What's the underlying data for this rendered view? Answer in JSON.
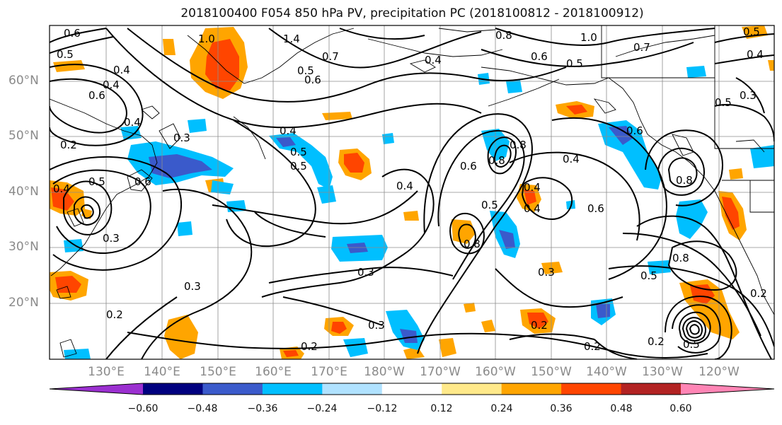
{
  "title": "2018100400 F054 850 hPa PV, precipitation PC (2018100812 - 2018100912)",
  "lat_labels": [
    "60°N",
    "50°N",
    "40°N",
    "30°N",
    "20°N"
  ],
  "lon_labels": [
    "130°E",
    "140°E",
    "150°E",
    "160°E",
    "170°E",
    "180°W",
    "170°W",
    "160°W",
    "150°W",
    "140°W",
    "130°W",
    "120°W"
  ],
  "colorbar": {
    "labels": [
      "−0.60",
      "−0.48",
      "−0.36",
      "−0.24",
      "−0.12",
      "0.12",
      "0.24",
      "0.36",
      "0.48",
      "0.60"
    ],
    "colors": [
      "#9b30d0",
      "#00007f",
      "#3a5acb",
      "#00bfff",
      "#b0e2ff",
      "#ffffff",
      "#ffe98a",
      "#ffa500",
      "#ff4500",
      "#b22222",
      "#ff85b5"
    ]
  },
  "contour_labels": [
    "0.6",
    "0.5",
    "0.4",
    "0.6",
    "0.4",
    "0.3",
    "0.2",
    "0.5",
    "0.4",
    "0.6",
    "0.5",
    "0.4",
    "0.5",
    "0.4",
    "0.8",
    "0.4",
    "0.3",
    "0.8",
    "0.6",
    "1.0",
    "0.7",
    "0.5",
    "0.6",
    "0.8",
    "0.6",
    "0.5",
    "0.8",
    "0.4",
    "0.5",
    "0.3",
    "0.4",
    "0.4",
    "0.6",
    "0.8",
    "0.8",
    "0.5",
    "0.3",
    "0.3",
    "0.3",
    "0.2",
    "0.2",
    "0.2",
    "0.3",
    "0.2",
    "0.5",
    "0.2",
    "0.5",
    "0.5",
    "0.4",
    "0.2",
    "1.0",
    "1.4",
    "0.6",
    "0.4",
    "0.7"
  ],
  "map": {
    "frame_color": "#000000",
    "grid_color": "#8c8c8c",
    "coast_color": "#000000",
    "contour_color": "#000000"
  }
}
